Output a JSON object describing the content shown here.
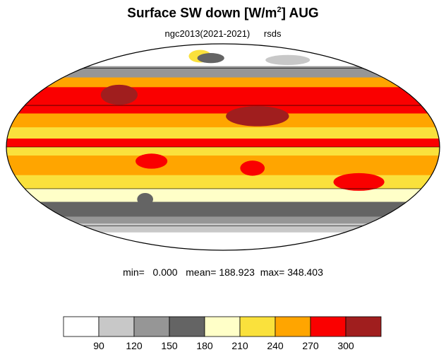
{
  "title": {
    "main": "Surface SW down [W/m",
    "sup": "2",
    "tail": "]  AUG"
  },
  "subtitle": {
    "run": "ngc2013(2021-2021)",
    "variable": "rsds"
  },
  "stats": {
    "min_label": "min=",
    "min": "0.000",
    "mean_label": "mean=",
    "mean": "188.923",
    "max_label": "max=",
    "max": "348.403"
  },
  "legend": {
    "colors": [
      "#ffffff",
      "#c8c8c8",
      "#969696",
      "#646464",
      "#ffffc8",
      "#fae13c",
      "#ffa500",
      "#fa0000",
      "#a01e1e"
    ],
    "ticks": [
      "90",
      "120",
      "150",
      "180",
      "210",
      "240",
      "270",
      "300"
    ]
  },
  "map": {
    "projection": "mollweide",
    "bands": [
      {
        "lat_from": 90,
        "lat_to": 62,
        "color": "#ffffff"
      },
      {
        "lat_from": 62,
        "lat_to": 52,
        "color": "#969696"
      },
      {
        "lat_from": 52,
        "lat_to": 44,
        "color": "#ffa500"
      },
      {
        "lat_from": 44,
        "lat_to": 24,
        "color": "#fa0000"
      },
      {
        "lat_from": 24,
        "lat_to": 14,
        "color": "#ffa500"
      },
      {
        "lat_from": 14,
        "lat_to": 6,
        "color": "#fae13c"
      },
      {
        "lat_from": 6,
        "lat_to": 0,
        "color": "#fa0000"
      },
      {
        "lat_from": 0,
        "lat_to": -6,
        "color": "#fae13c"
      },
      {
        "lat_from": -6,
        "lat_to": -20,
        "color": "#ffa500"
      },
      {
        "lat_from": -20,
        "lat_to": -30,
        "color": "#fae13c"
      },
      {
        "lat_from": -30,
        "lat_to": -40,
        "color": "#ffffc8"
      },
      {
        "lat_from": -40,
        "lat_to": -52,
        "color": "#646464"
      },
      {
        "lat_from": -52,
        "lat_to": -58,
        "color": "#969696"
      },
      {
        "lat_from": -58,
        "lat_to": -66,
        "color": "#c8c8c8"
      },
      {
        "lat_from": -66,
        "lat_to": -90,
        "color": "#ffffff"
      }
    ],
    "patches": [
      {
        "lon": -40,
        "lat": 72,
        "w": 30,
        "h": 10,
        "color": "#fae13c"
      },
      {
        "lon": 30,
        "lat": 22,
        "w": 50,
        "h": 16,
        "color": "#a01e1e"
      },
      {
        "lon": -100,
        "lat": 38,
        "w": 30,
        "h": 16,
        "color": "#a01e1e"
      },
      {
        "lon": 90,
        "lat": 32,
        "w": 40,
        "h": 10,
        "color": "#fa0000"
      },
      {
        "lon": -60,
        "lat": -10,
        "w": 22,
        "h": 12,
        "color": "#fa0000"
      },
      {
        "lon": 25,
        "lat": -15,
        "w": 16,
        "h": 12,
        "color": "#fa0000"
      },
      {
        "lon": 120,
        "lat": -25,
        "w": 40,
        "h": 14,
        "color": "#fa0000"
      },
      {
        "lon": -75,
        "lat": -38,
        "w": 10,
        "h": 10,
        "color": "#646464"
      },
      {
        "lon": -20,
        "lat": 70,
        "w": 35,
        "h": 8,
        "color": "#646464"
      },
      {
        "lon": 100,
        "lat": 68,
        "w": 60,
        "h": 8,
        "color": "#c8c8c8"
      }
    ]
  }
}
